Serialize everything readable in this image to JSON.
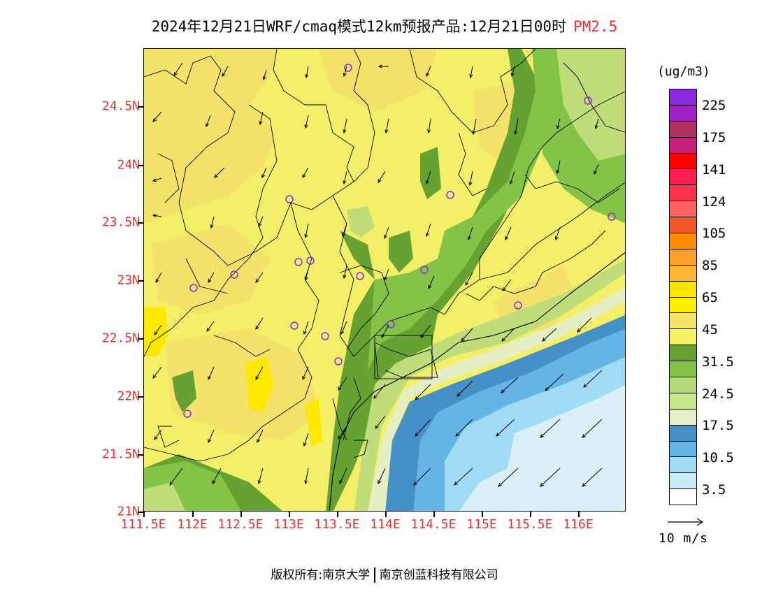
{
  "title": {
    "main": "2024年12月21日WRF/cmaq模式12km预报产品:12月21日00时",
    "product": "PM2.5"
  },
  "axes": {
    "lat_labels": [
      "24.5N",
      "24N",
      "23.5N",
      "23N",
      "22.5N",
      "22N",
      "21.5N",
      "21N"
    ],
    "lon_labels": [
      "111.5E",
      "112E",
      "112.5E",
      "113E",
      "113.5E",
      "114E",
      "114.5E",
      "115E",
      "115.5E",
      "116E"
    ]
  },
  "legend": {
    "unit": "(ug/m3)",
    "labels": [
      "225",
      "175",
      "141",
      "124",
      "105",
      "85",
      "65",
      "45",
      "31.5",
      "24.5",
      "17.5",
      "10.5",
      "3.5"
    ],
    "colors": [
      "#8a2be2",
      "#a020c8",
      "#b03060",
      "#c81e78",
      "#ff0000",
      "#ff1e50",
      "#ff3250",
      "#ff6464",
      "#f05a28",
      "#ff8c00",
      "#ffa028",
      "#ffb432",
      "#ffe600",
      "#fff000",
      "#f5e664",
      "#f5f064",
      "#64a032",
      "#82c346",
      "#b4dc78",
      "#c8e68c",
      "#e6f0c8",
      "#4690c8",
      "#64b4e6",
      "#a0dcf5",
      "#c8ebfa",
      "#ffffff"
    ]
  },
  "map": {
    "colors": {
      "base": "#f3ef68",
      "orange_yellow": "#f4e26a",
      "bright_yellow": "#ffe800",
      "dark_green": "#66a231",
      "mid_green": "#83c447",
      "light_green": "#c0dd7a",
      "pale_green": "#e5efc6",
      "deep_blue": "#4690c8",
      "mid_blue": "#64b4e6",
      "light_blue": "#a0dcf5",
      "pale_blue": "#dcf0fa"
    }
  },
  "vector_reference": {
    "label": "10 m/s"
  },
  "footer": {
    "left": "版权所有:南京大学",
    "right": "南京创蓝科技有限公司"
  }
}
